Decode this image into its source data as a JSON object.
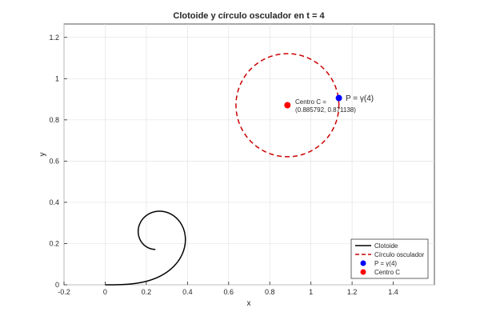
{
  "chart_data": {
    "type": "line",
    "title": "Clotoide y círculo osculador en t = 4",
    "xlabel": "x",
    "ylabel": "y",
    "xlim": [
      -0.2,
      1.6
    ],
    "ylim": [
      0,
      1.265
    ],
    "grid": true,
    "xticks": [
      -0.2,
      0,
      0.2,
      0.4,
      0.6,
      0.8,
      1,
      1.2,
      1.4
    ],
    "xtick_labels": [
      "-0.2",
      "0",
      "0.2",
      "0.4",
      "0.6",
      "0.8",
      "1",
      "1.2",
      "1.4"
    ],
    "yticks": [
      0,
      0.2,
      0.4,
      0.6,
      0.8,
      1,
      1.2
    ],
    "ytick_labels": [
      "0",
      "0.2",
      "0.4",
      "0.6",
      "0.8",
      "1",
      "1.2"
    ],
    "series": [
      {
        "name": "Clotoide",
        "kind": "clothoid",
        "t_range": [
          0,
          4
        ],
        "color": "#000000",
        "style": "solid"
      },
      {
        "name": "Círculo osculador",
        "kind": "circle",
        "center": [
          0.885792,
          0.871138
        ],
        "radius": 0.25,
        "color": "#cc0000",
        "style": "dashed"
      },
      {
        "name": "P = γ(4)",
        "kind": "point",
        "x": 1.135792,
        "y": 0.906,
        "color": "#0000ff"
      },
      {
        "name": "Centro C",
        "kind": "point",
        "x": 0.885792,
        "y": 0.871138,
        "color": "#ff0000"
      }
    ],
    "annotations": [
      {
        "text_line1": "Centro C =",
        "text_line2": "(0.885792, 0.871138)",
        "x": 0.885792,
        "y": 0.871138
      },
      {
        "text": "P = γ(4)",
        "x": 1.135792,
        "y": 0.906
      }
    ],
    "legend": {
      "position": "bottom-right",
      "entries": [
        "Clotoide",
        "Círculo osculador",
        "P = γ(4)",
        "Centro C"
      ]
    }
  }
}
